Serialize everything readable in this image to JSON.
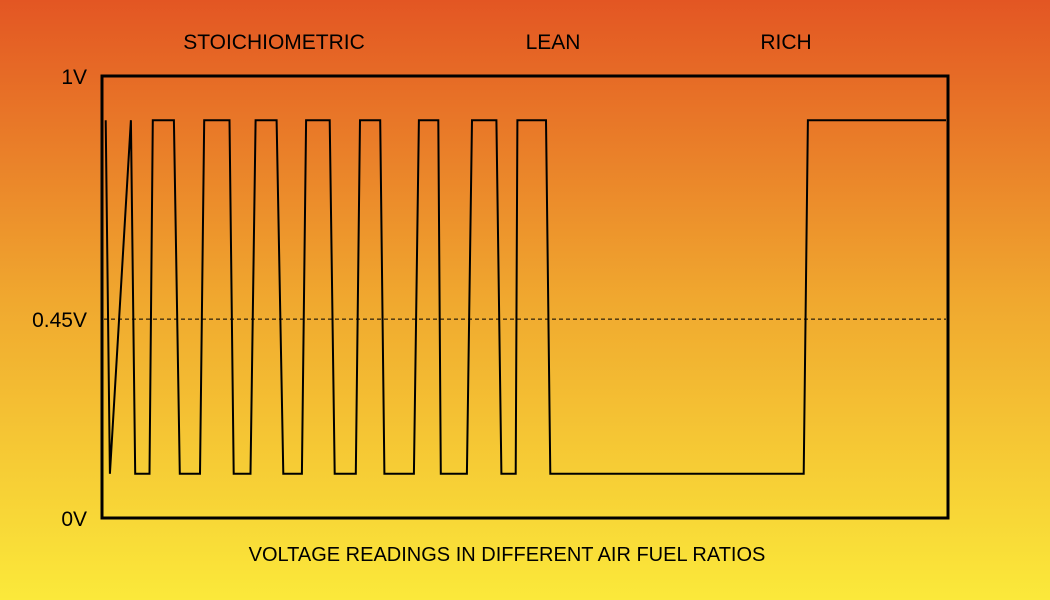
{
  "chart_data": {
    "type": "line",
    "caption": "VOLTAGE READINGS IN DIFFERENT AIR FUEL RATIOS",
    "regions": [
      "STOICHIOMETRIC",
      "LEAN",
      "RICH"
    ],
    "yticks": [
      {
        "label": "1V",
        "value": 1.0
      },
      {
        "label": "0.45V",
        "value": 0.45
      },
      {
        "label": "0V",
        "value": 0.0
      }
    ],
    "ylim": [
      0,
      1
    ],
    "xlim": [
      0,
      100
    ],
    "reference_line": {
      "value": 0.45,
      "style": "dashed"
    },
    "series": [
      {
        "x": [
          0.2,
          0.7,
          3.2,
          3.7,
          5.4,
          5.8,
          8.3,
          9.0,
          11.4,
          11.9,
          14.9,
          15.4,
          17.4,
          18.0,
          20.5,
          21.3,
          23.5,
          24.0,
          26.8,
          27.4,
          29.9,
          30.4,
          32.8,
          33.3,
          36.8,
          37.4,
          39.7,
          40.0,
          43.1,
          43.7,
          46.6,
          47.2,
          48.9,
          49.1,
          52.5,
          53.0,
          69.5,
          70.0,
          83.1,
          83.6,
          100
        ],
        "y": [
          0.9,
          0.1,
          0.9,
          0.1,
          0.1,
          0.9,
          0.9,
          0.1,
          0.1,
          0.9,
          0.9,
          0.1,
          0.1,
          0.9,
          0.9,
          0.1,
          0.1,
          0.9,
          0.9,
          0.1,
          0.1,
          0.9,
          0.9,
          0.1,
          0.1,
          0.9,
          0.9,
          0.1,
          0.1,
          0.9,
          0.9,
          0.1,
          0.1,
          0.9,
          0.9,
          0.1,
          0.1,
          0.1,
          0.1,
          0.9,
          0.9
        ]
      }
    ],
    "grid": false,
    "line_color": "#000000"
  }
}
